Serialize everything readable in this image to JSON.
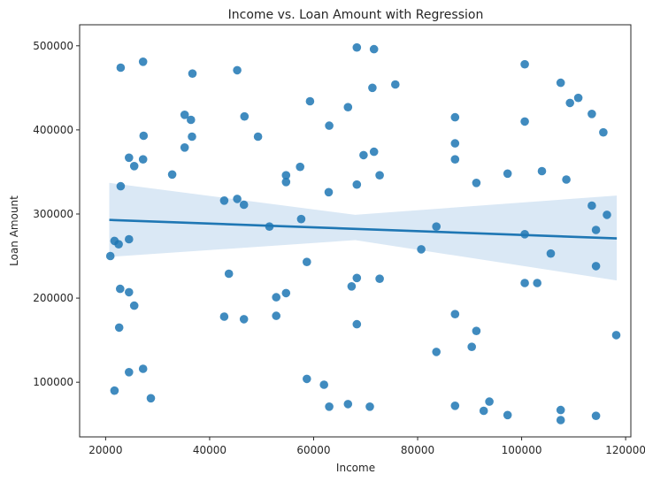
{
  "chart_data": {
    "type": "scatter",
    "title": "Income vs. Loan Amount with Regression",
    "xlabel": "Income",
    "ylabel": "Loan Amount",
    "xlim": [
      15000,
      121000
    ],
    "ylim": [
      35000,
      525000
    ],
    "xticks": [
      20000,
      40000,
      60000,
      80000,
      100000,
      120000
    ],
    "yticks": [
      100000,
      200000,
      300000,
      400000,
      500000
    ],
    "grid": false,
    "colors": {
      "points": "#1f77b4",
      "line": "#1f77b4",
      "band": "#bcd6ec",
      "axes": "#262626"
    },
    "regression": {
      "x": [
        20700,
        118300
      ],
      "y": [
        293000,
        271000
      ],
      "ci_upper": [
        337000,
        322000
      ],
      "ci_lower": [
        249000,
        221000
      ],
      "ci_mid_x": 68000,
      "ci_mid_upper": 299000,
      "ci_mid_lower": 269000
    },
    "points": [
      {
        "x": 22900,
        "y": 474000
      },
      {
        "x": 27200,
        "y": 481000
      },
      {
        "x": 36700,
        "y": 467000
      },
      {
        "x": 45300,
        "y": 471000
      },
      {
        "x": 68300,
        "y": 498000
      },
      {
        "x": 71600,
        "y": 496000
      },
      {
        "x": 100600,
        "y": 478000
      },
      {
        "x": 75700,
        "y": 454000
      },
      {
        "x": 71300,
        "y": 450000
      },
      {
        "x": 107500,
        "y": 456000
      },
      {
        "x": 110900,
        "y": 438000
      },
      {
        "x": 109300,
        "y": 432000
      },
      {
        "x": 59300,
        "y": 434000
      },
      {
        "x": 66600,
        "y": 427000
      },
      {
        "x": 35200,
        "y": 418000
      },
      {
        "x": 36400,
        "y": 412000
      },
      {
        "x": 46700,
        "y": 416000
      },
      {
        "x": 87200,
        "y": 415000
      },
      {
        "x": 100600,
        "y": 410000
      },
      {
        "x": 113500,
        "y": 419000
      },
      {
        "x": 115700,
        "y": 397000
      },
      {
        "x": 63000,
        "y": 405000
      },
      {
        "x": 27300,
        "y": 393000
      },
      {
        "x": 36600,
        "y": 392000
      },
      {
        "x": 49300,
        "y": 392000
      },
      {
        "x": 87200,
        "y": 384000
      },
      {
        "x": 35200,
        "y": 379000
      },
      {
        "x": 71600,
        "y": 374000
      },
      {
        "x": 69600,
        "y": 370000
      },
      {
        "x": 24500,
        "y": 367000
      },
      {
        "x": 27200,
        "y": 365000
      },
      {
        "x": 87200,
        "y": 365000
      },
      {
        "x": 25500,
        "y": 357000
      },
      {
        "x": 57400,
        "y": 356000
      },
      {
        "x": 32800,
        "y": 347000
      },
      {
        "x": 54700,
        "y": 346000
      },
      {
        "x": 72700,
        "y": 346000
      },
      {
        "x": 97300,
        "y": 348000
      },
      {
        "x": 103900,
        "y": 351000
      },
      {
        "x": 108600,
        "y": 341000
      },
      {
        "x": 54700,
        "y": 338000
      },
      {
        "x": 91300,
        "y": 337000
      },
      {
        "x": 22900,
        "y": 333000
      },
      {
        "x": 68300,
        "y": 335000
      },
      {
        "x": 62900,
        "y": 326000
      },
      {
        "x": 42800,
        "y": 316000
      },
      {
        "x": 45300,
        "y": 318000
      },
      {
        "x": 46600,
        "y": 311000
      },
      {
        "x": 113500,
        "y": 310000
      },
      {
        "x": 116400,
        "y": 299000
      },
      {
        "x": 57600,
        "y": 294000
      },
      {
        "x": 51500,
        "y": 285000
      },
      {
        "x": 83600,
        "y": 285000
      },
      {
        "x": 114300,
        "y": 281000
      },
      {
        "x": 100600,
        "y": 276000
      },
      {
        "x": 21700,
        "y": 268000
      },
      {
        "x": 22500,
        "y": 264000
      },
      {
        "x": 24500,
        "y": 270000
      },
      {
        "x": 80700,
        "y": 258000
      },
      {
        "x": 105600,
        "y": 253000
      },
      {
        "x": 20900,
        "y": 250000
      },
      {
        "x": 58700,
        "y": 243000
      },
      {
        "x": 114300,
        "y": 238000
      },
      {
        "x": 43700,
        "y": 229000
      },
      {
        "x": 68300,
        "y": 224000
      },
      {
        "x": 72700,
        "y": 223000
      },
      {
        "x": 100600,
        "y": 218000
      },
      {
        "x": 103000,
        "y": 218000
      },
      {
        "x": 67300,
        "y": 214000
      },
      {
        "x": 22800,
        "y": 211000
      },
      {
        "x": 24500,
        "y": 207000
      },
      {
        "x": 54700,
        "y": 206000
      },
      {
        "x": 52800,
        "y": 201000
      },
      {
        "x": 25500,
        "y": 191000
      },
      {
        "x": 87200,
        "y": 181000
      },
      {
        "x": 42800,
        "y": 178000
      },
      {
        "x": 52800,
        "y": 179000
      },
      {
        "x": 46600,
        "y": 175000
      },
      {
        "x": 68300,
        "y": 169000
      },
      {
        "x": 22600,
        "y": 165000
      },
      {
        "x": 91300,
        "y": 161000
      },
      {
        "x": 118200,
        "y": 156000
      },
      {
        "x": 90400,
        "y": 142000
      },
      {
        "x": 83600,
        "y": 136000
      },
      {
        "x": 27200,
        "y": 116000
      },
      {
        "x": 24500,
        "y": 112000
      },
      {
        "x": 58700,
        "y": 104000
      },
      {
        "x": 62000,
        "y": 97000
      },
      {
        "x": 21700,
        "y": 90000
      },
      {
        "x": 28700,
        "y": 81000
      },
      {
        "x": 93800,
        "y": 77000
      },
      {
        "x": 66600,
        "y": 74000
      },
      {
        "x": 87200,
        "y": 72000
      },
      {
        "x": 63000,
        "y": 71000
      },
      {
        "x": 70800,
        "y": 71000
      },
      {
        "x": 92700,
        "y": 66000
      },
      {
        "x": 107500,
        "y": 67000
      },
      {
        "x": 97300,
        "y": 61000
      },
      {
        "x": 114300,
        "y": 60000
      },
      {
        "x": 107500,
        "y": 55000
      }
    ]
  }
}
